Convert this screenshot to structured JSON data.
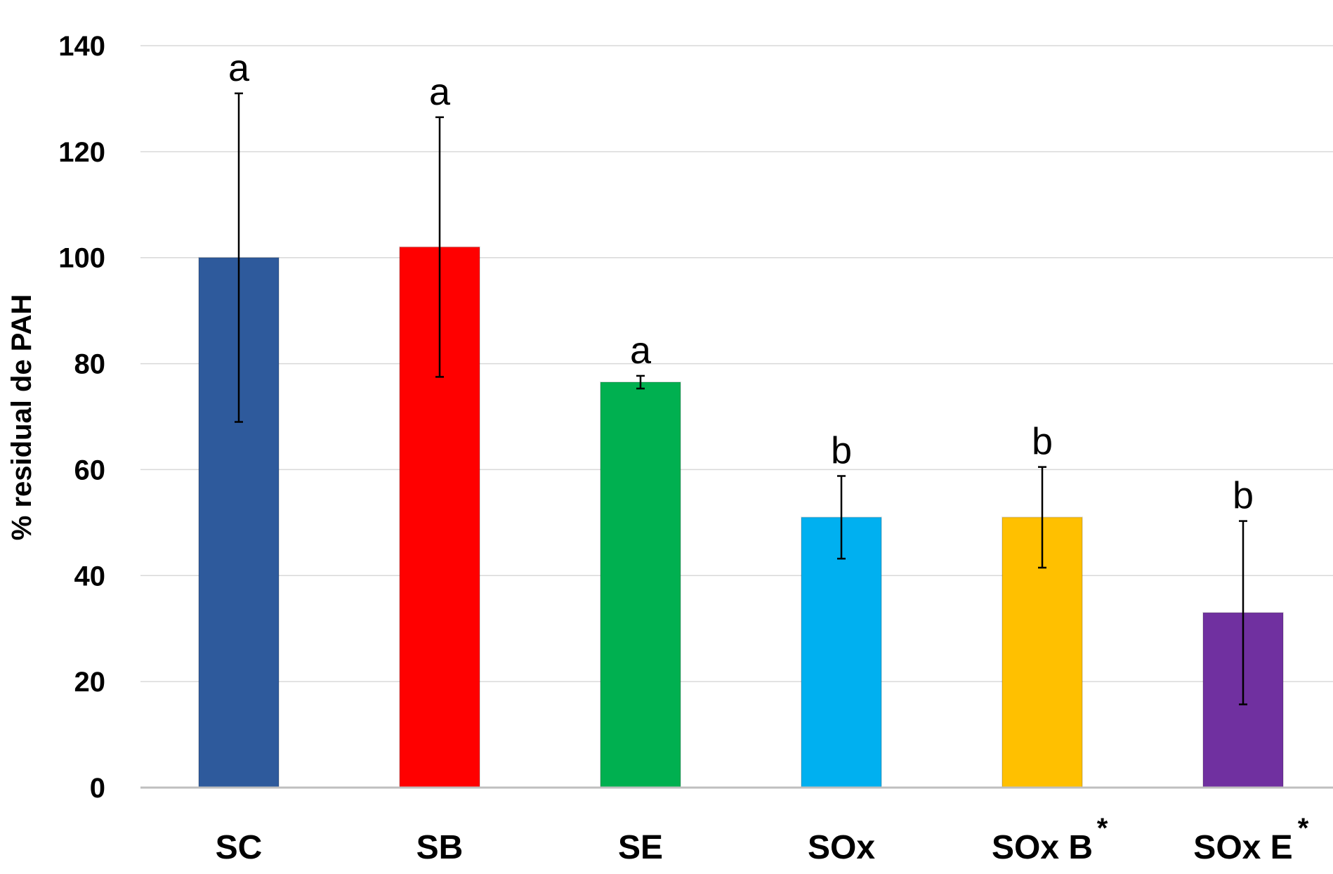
{
  "chart_data": {
    "type": "bar",
    "ylabel": "% residual de PAH",
    "ylim": [
      0,
      140
    ],
    "yticks": [
      "0",
      "20",
      "40",
      "60",
      "80",
      "100",
      "120",
      "140"
    ],
    "grid": true,
    "categories": [
      "SC",
      "SB",
      "SE",
      "SOx",
      "SOx B",
      "SOx E"
    ],
    "category_markers": [
      "",
      "",
      "",
      "",
      "*",
      "*"
    ],
    "values": [
      100,
      102,
      76.5,
      51,
      51,
      33
    ],
    "error": [
      31,
      24.5,
      1.2,
      7.8,
      9.5,
      17.3
    ],
    "significance": [
      "a",
      "a",
      "a",
      "b",
      "b",
      "b"
    ],
    "colors": [
      "#2E5A9C",
      "#FF0000",
      "#00B050",
      "#00B0F0",
      "#FFC000",
      "#7030A0"
    ]
  }
}
